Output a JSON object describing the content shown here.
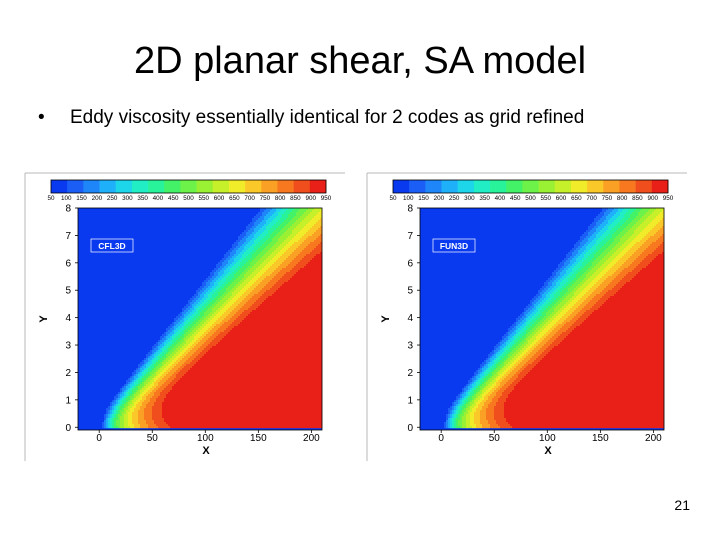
{
  "slide": {
    "title": "2D planar shear, SA model",
    "bullet": "Eddy viscosity essentially identical for 2 codes as grid refined",
    "page_number": "21"
  },
  "colors": {
    "background": "#0A3AF0",
    "outline": "#000000",
    "band_palette": [
      "#0A3AF0",
      "#1A5EF6",
      "#1E86F8",
      "#1EB0F8",
      "#1ED6EA",
      "#22EEC6",
      "#28F29A",
      "#44F268",
      "#6CF248",
      "#9AF032",
      "#C6F02A",
      "#F0EC2A",
      "#FAC828",
      "#FAA024",
      "#F87820",
      "#F04E1C",
      "#E82018"
    ]
  },
  "plots": [
    {
      "label": "CFL3D",
      "chart_data": {
        "type": "heatmap",
        "title": "",
        "xlabel": "X",
        "ylabel": "Y",
        "xlim": [
          -20,
          210
        ],
        "ylim": [
          -0.1,
          8
        ],
        "x_ticks": [
          "0",
          "50",
          "100",
          "150",
          "200"
        ],
        "y_ticks": [
          "0",
          "1",
          "2",
          "3",
          "4",
          "5",
          "6",
          "7",
          "8"
        ],
        "colorbar_levels": [
          "50",
          "100",
          "150",
          "200",
          "250",
          "300",
          "350",
          "400",
          "450",
          "500",
          "550",
          "600",
          "650",
          "700",
          "750",
          "800",
          "850",
          "900",
          "950"
        ],
        "field": "eddy viscosity, contour levels 50 to 950 step 50"
      }
    },
    {
      "label": "FUN3D",
      "chart_data": {
        "type": "heatmap",
        "title": "",
        "xlabel": "X",
        "ylabel": "Y",
        "xlim": [
          -20,
          210
        ],
        "ylim": [
          -0.1,
          8
        ],
        "x_ticks": [
          "0",
          "50",
          "100",
          "150",
          "200"
        ],
        "y_ticks": [
          "0",
          "1",
          "2",
          "3",
          "4",
          "5",
          "6",
          "7",
          "8"
        ],
        "colorbar_levels": [
          "50",
          "100",
          "150",
          "200",
          "250",
          "300",
          "350",
          "400",
          "450",
          "500",
          "550",
          "600",
          "650",
          "700",
          "750",
          "800",
          "850",
          "900",
          "950"
        ],
        "field": "eddy viscosity, contour levels 50 to 950 step 50"
      }
    }
  ]
}
